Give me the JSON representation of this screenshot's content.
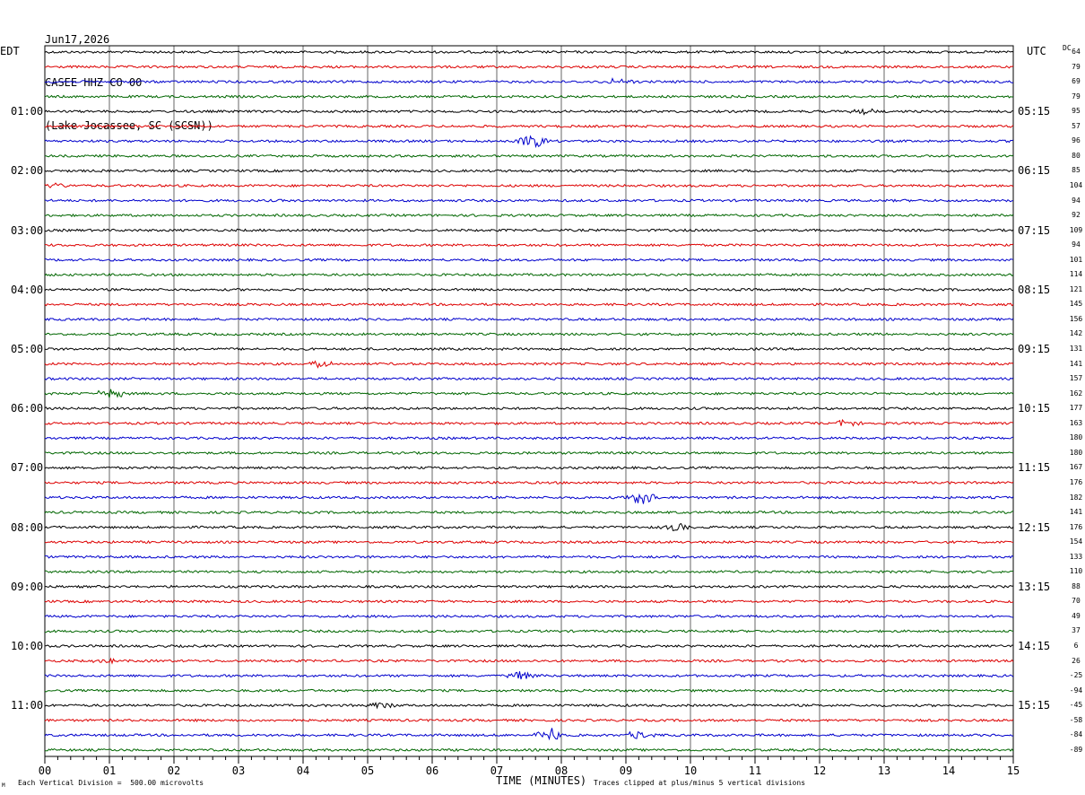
{
  "header": {
    "date": "Jun17,2026",
    "station": "CASEE HHZ CO 00",
    "location": "(Lake Jocassee, SC (SCSN))"
  },
  "left_zone": "EDT",
  "right_zone": "UTC",
  "dc_label": "DC",
  "footer": {
    "scale_note": "Each Vertical Division =  500.00 microvolts",
    "clip_note": "Traces clipped at plus/minus 5 vertical divisions",
    "corner_mark": "M"
  },
  "colors": {
    "trace_cycle": [
      "#000000",
      "#dd0000",
      "#0000cc",
      "#006600"
    ],
    "grid": "#000000"
  },
  "chart_data": {
    "type": "line",
    "title": "",
    "xlabel": "TIME (MINUTES)",
    "ylabel": "",
    "xlim": [
      0,
      15
    ],
    "x_ticks": [
      "00",
      "01",
      "02",
      "03",
      "04",
      "05",
      "06",
      "07",
      "08",
      "09",
      "10",
      "11",
      "12",
      "13",
      "14",
      "15"
    ],
    "left_hour_labels": [
      "01:00",
      "02:00",
      "03:00",
      "04:00",
      "05:00",
      "06:00",
      "07:00",
      "08:00",
      "09:00",
      "10:00",
      "11:00"
    ],
    "right_hour_labels": [
      "05:15",
      "06:15",
      "07:15",
      "08:15",
      "09:15",
      "10:15",
      "11:15",
      "12:15",
      "13:15",
      "14:15",
      "15:15"
    ],
    "trace_count": 48,
    "traces_per_hour": 4,
    "dc_offsets": [
      64,
      79,
      69,
      79,
      95,
      57,
      96,
      80,
      85,
      104,
      94,
      92,
      109,
      94,
      101,
      114,
      121,
      145,
      156,
      142,
      131,
      141,
      157,
      162,
      177,
      163,
      180,
      180,
      167,
      176,
      182,
      141,
      176,
      154,
      133,
      110,
      88,
      70,
      49,
      37,
      6,
      26,
      -25,
      -94,
      -45,
      -58,
      -84,
      -89
    ],
    "events": [
      {
        "trace": 2,
        "minute": 8.9,
        "amp": 4
      },
      {
        "trace": 4,
        "minute": 12.7,
        "amp": 3
      },
      {
        "trace": 6,
        "minute": 7.55,
        "amp": 9
      },
      {
        "trace": 9,
        "minute": 0.1,
        "amp": 4
      },
      {
        "trace": 21,
        "minute": 4.25,
        "amp": 4
      },
      {
        "trace": 23,
        "minute": 1.05,
        "amp": 7
      },
      {
        "trace": 25,
        "minute": 12.4,
        "amp": 4
      },
      {
        "trace": 30,
        "minute": 9.25,
        "amp": 8
      },
      {
        "trace": 32,
        "minute": 9.75,
        "amp": 5
      },
      {
        "trace": 41,
        "minute": 0.95,
        "amp": 5
      },
      {
        "trace": 42,
        "minute": 7.4,
        "amp": 6
      },
      {
        "trace": 44,
        "minute": 5.2,
        "amp": 4
      },
      {
        "trace": 46,
        "minute": 7.8,
        "amp": 9
      },
      {
        "trace": 46,
        "minute": 9.2,
        "amp": 5
      }
    ]
  }
}
